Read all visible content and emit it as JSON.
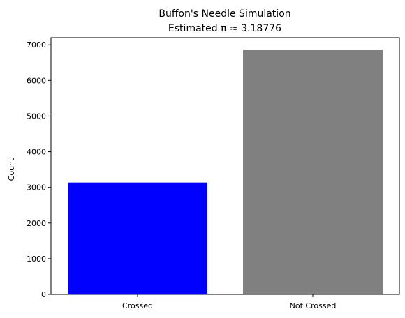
{
  "chart_data": {
    "type": "bar",
    "title": "Buffon's Needle Simulation",
    "subtitle": "Estimated π ≈ 3.18776",
    "xlabel": "",
    "ylabel": "Count",
    "categories": [
      "Crossed",
      "Not Crossed"
    ],
    "values": [
      3137,
      6863
    ],
    "colors": [
      "#0000ff",
      "#808080"
    ],
    "ylim": [
      0,
      7200
    ],
    "yticks": [
      0,
      1000,
      2000,
      3000,
      4000,
      5000,
      6000,
      7000
    ],
    "grid": false
  }
}
